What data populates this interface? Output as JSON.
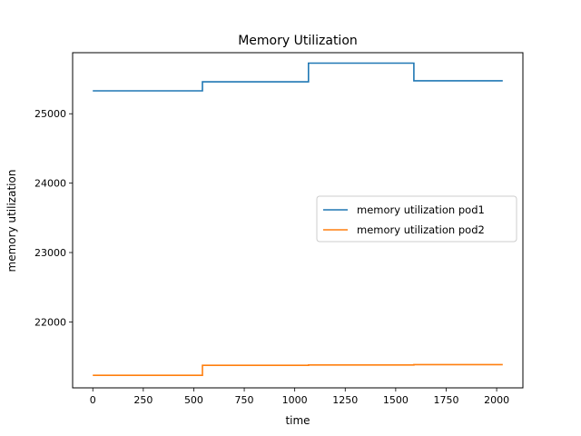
{
  "chart_data": {
    "type": "line",
    "title": "Memory Utilization",
    "xlabel": "time",
    "ylabel": "memory utilization",
    "xlim": [
      -100,
      2130
    ],
    "ylim": [
      21050,
      25880
    ],
    "xticks": [
      0,
      250,
      500,
      750,
      1000,
      1250,
      1500,
      1750,
      2000
    ],
    "yticks": [
      22000,
      23000,
      24000,
      25000
    ],
    "grid": false,
    "legend": "center-right",
    "step": true,
    "series": [
      {
        "name": "memory utilization pod1",
        "color": "#1f77b4",
        "x": [
          0,
          543,
          1068,
          1590,
          2030
        ],
        "y": [
          25330,
          25460,
          25730,
          25475,
          25475
        ]
      },
      {
        "name": "memory utilization pod2",
        "color": "#ff7f0e",
        "x": [
          0,
          543,
          1068,
          1590,
          2030
        ],
        "y": [
          21230,
          21375,
          21380,
          21385,
          21385
        ]
      }
    ]
  }
}
